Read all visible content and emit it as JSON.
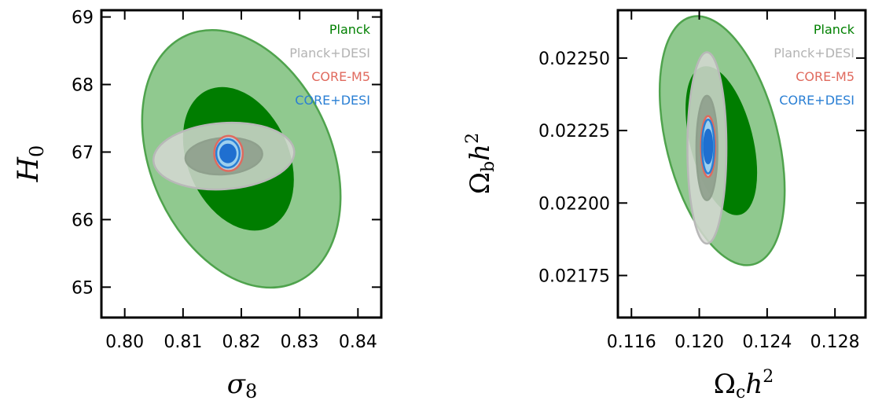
{
  "chart_data": [
    {
      "type": "contour",
      "xlabel": "σ8",
      "ylabel": "H0",
      "xlim": [
        0.796,
        0.844
      ],
      "ylim": [
        64.55,
        69.1
      ],
      "xticks": [
        0.8,
        0.81,
        0.82,
        0.83,
        0.84
      ],
      "xtick_labels": [
        "0.80",
        "0.81",
        "0.82",
        "0.83",
        "0.84"
      ],
      "yticks": [
        65,
        66,
        67,
        68,
        69
      ],
      "ytick_labels": [
        "65",
        "66",
        "67",
        "68",
        "69"
      ],
      "legend_position": "top-right",
      "legend": [
        {
          "name": "Planck",
          "color": "#008000"
        },
        {
          "name": "Planck+DESI",
          "color": "#b3b3b3"
        },
        {
          "name": "CORE-M5",
          "color": "#e06a5e"
        },
        {
          "name": "CORE+DESI",
          "color": "#2a7fd4"
        }
      ],
      "contours": [
        {
          "series": "Planck",
          "level": "95%",
          "cx": 0.82,
          "cy": 66.9,
          "sx": 0.0155,
          "sy": 2.0,
          "angle": 24,
          "fill": "#90c98f",
          "stroke": "#4fa34d",
          "opacity": 1.0
        },
        {
          "series": "Planck",
          "level": "68%",
          "cx": 0.8195,
          "cy": 66.9,
          "sx": 0.0085,
          "sy": 1.1,
          "angle": 24,
          "fill": "#007d00",
          "stroke": "#007d00",
          "opacity": 1.0
        },
        {
          "series": "Planck+DESI",
          "level": "95%",
          "cx": 0.817,
          "cy": 66.94,
          "sx": 0.0121,
          "sy": 0.49,
          "angle": 4,
          "fill": "#d6d8d3",
          "stroke": "#b8b8b8",
          "opacity": 0.85
        },
        {
          "series": "Planck+DESI",
          "level": "68%",
          "cx": 0.817,
          "cy": 66.94,
          "sx": 0.0066,
          "sy": 0.27,
          "angle": 4,
          "fill": "#8fa08d",
          "stroke": "#8fa08d",
          "opacity": 0.9
        },
        {
          "series": "CORE-M5",
          "level": "95%",
          "cx": 0.8178,
          "cy": 66.98,
          "sx": 0.00245,
          "sy": 0.26,
          "angle": 0,
          "fill": "#b9cbd8",
          "stroke": "#e06a5e",
          "opacity": 1.0
        },
        {
          "series": "CORE+DESI",
          "level": "95%",
          "cx": 0.8177,
          "cy": 66.98,
          "sx": 0.002,
          "sy": 0.21,
          "angle": 0,
          "fill": "#9dd0ef",
          "stroke": "#2a7fd4",
          "opacity": 1.0
        },
        {
          "series": "CORE+DESI",
          "level": "68%",
          "cx": 0.8177,
          "cy": 66.98,
          "sx": 0.0013,
          "sy": 0.13,
          "angle": 0,
          "fill": "#1f6fd0",
          "stroke": "#1f6fd0",
          "opacity": 1.0
        }
      ]
    },
    {
      "type": "contour",
      "xlabel": "Ωch2",
      "ylabel": "Ωbh2",
      "xlim": [
        0.1152,
        0.1298
      ],
      "ylim": [
        0.021605,
        0.022665
      ],
      "xticks": [
        0.116,
        0.12,
        0.124,
        0.128
      ],
      "xtick_labels": [
        "0.116",
        "0.120",
        "0.124",
        "0.128"
      ],
      "yticks": [
        0.02175,
        0.022,
        0.02225,
        0.0225
      ],
      "ytick_labels": [
        "0.02175",
        "0.02200",
        "0.02225",
        "0.02250"
      ],
      "legend_position": "top-right",
      "legend": [
        {
          "name": "Planck",
          "color": "#008000"
        },
        {
          "name": "Planck+DESI",
          "color": "#b3b3b3"
        },
        {
          "name": "CORE-M5",
          "color": "#e06a5e"
        },
        {
          "name": "CORE+DESI",
          "color": "#2a7fd4"
        }
      ],
      "contours": [
        {
          "series": "Planck",
          "level": "95%",
          "cx": 0.12135,
          "cy": 0.022215,
          "sx": 0.0033,
          "sy": 0.00044,
          "angle": 14,
          "fill": "#90c98f",
          "stroke": "#4fa34d",
          "opacity": 1.0
        },
        {
          "series": "Planck",
          "level": "68%",
          "cx": 0.1213,
          "cy": 0.022215,
          "sx": 0.0018,
          "sy": 0.00026,
          "angle": 14,
          "fill": "#007d00",
          "stroke": "#007d00",
          "opacity": 1.0
        },
        {
          "series": "Planck+DESI",
          "level": "95%",
          "cx": 0.12045,
          "cy": 0.02219,
          "sx": 0.00115,
          "sy": 0.00033,
          "angle": 0,
          "fill": "#d6d8d3",
          "stroke": "#b8b8b8",
          "opacity": 0.85
        },
        {
          "series": "Planck+DESI",
          "level": "68%",
          "cx": 0.12045,
          "cy": 0.02219,
          "sx": 0.00062,
          "sy": 0.00018,
          "angle": 0,
          "fill": "#8fa08d",
          "stroke": "#8fa08d",
          "opacity": 0.9
        },
        {
          "series": "CORE-M5",
          "level": "95%",
          "cx": 0.12052,
          "cy": 0.022195,
          "sx": 0.00042,
          "sy": 0.000105,
          "angle": 0,
          "fill": "#b9cbd8",
          "stroke": "#e06a5e",
          "opacity": 1.0
        },
        {
          "series": "CORE+DESI",
          "level": "95%",
          "cx": 0.12052,
          "cy": 0.022195,
          "sx": 0.00036,
          "sy": 9.3e-05,
          "angle": 0,
          "fill": "#9dd0ef",
          "stroke": "#2a7fd4",
          "opacity": 1.0
        },
        {
          "series": "CORE+DESI",
          "level": "68%",
          "cx": 0.12052,
          "cy": 0.022195,
          "sx": 0.00024,
          "sy": 5.8e-05,
          "angle": 0,
          "fill": "#1f6fd0",
          "stroke": "#1f6fd0",
          "opacity": 1.0
        }
      ]
    }
  ]
}
